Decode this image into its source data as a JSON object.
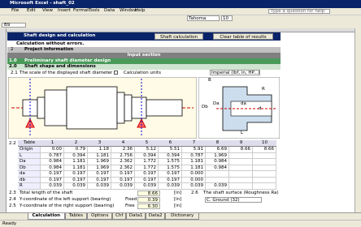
{
  "window": {
    "title": "Microsoft Excel - shaft_02"
  },
  "menu": [
    "File",
    "Edit",
    "View",
    "Insert",
    "Format",
    "Tools",
    "Data",
    "Window",
    "Help"
  ],
  "help_box": "Type a question for help",
  "toolbar": {
    "font": "Tahoma",
    "size": "10"
  },
  "name_box": "B9",
  "sheet": {
    "title": "Shaft design and calculation",
    "buttons": [
      "Shaft calculation",
      "Clear table of results"
    ],
    "status_message": "Calculation without errors.",
    "project": {
      "number": "2",
      "label": "Project information"
    },
    "input_section": "Input section",
    "section_1": {
      "number": "1.0",
      "label": "Preliminary shaft diameter design"
    },
    "section_2": {
      "number": "2.0",
      "label": "Shaft shape and dimensions"
    },
    "scale": {
      "number": "2.1",
      "label": "The scale of the displayed shaft diameter",
      "units_label": "Calculation units",
      "units_value": "Imperial (lbf, in, HP...)"
    },
    "figure_labels": [
      "B",
      "Db",
      "Da",
      "da",
      "d",
      "R",
      "L"
    ],
    "table": {
      "number": "2.2",
      "header": [
        "Table",
        "1",
        "2",
        "3",
        "4",
        "5",
        "6",
        "7",
        "8",
        "9",
        "10"
      ],
      "rows": [
        [
          "Origin",
          "0.00",
          "0.79",
          "1.18",
          "2.36",
          "5.12",
          "5.51",
          "5.91",
          "6.69",
          "8.66",
          "8.66"
        ],
        [
          "L",
          "0.787",
          "0.394",
          "1.181",
          "2.756",
          "0.394",
          "0.394",
          "0.787",
          "1.969"
        ],
        [
          "Da",
          "0.984",
          "1.181",
          "1.969",
          "2.362",
          "1.772",
          "1.575",
          "1.181",
          "0.984"
        ],
        [
          "Db",
          "0.984",
          "1.181",
          "1.969",
          "2.362",
          "1.772",
          "1.575",
          "1.181",
          "0.984"
        ],
        [
          "da",
          "0.197",
          "0.197",
          "0.197",
          "0.197",
          "0.197",
          "0.197",
          "0.000"
        ],
        [
          "db",
          "0.197",
          "0.197",
          "0.197",
          "0.197",
          "0.197",
          "0.197",
          "0.000"
        ],
        [
          "R",
          "0.039",
          "0.039",
          "0.039",
          "0.039",
          "0.039",
          "0.039",
          "0.039",
          "0.039"
        ]
      ]
    },
    "params": [
      {
        "number": "2.3",
        "label": "Total length of the shaft",
        "value": "8.66",
        "unit": "[in]"
      },
      {
        "number": "2.4",
        "label": "Y-coordinate of the left support (bearing)",
        "mode": "Fixed",
        "value": "0.39",
        "unit": "[in]"
      },
      {
        "number": "2.5",
        "label": "Y-coordinate of the right support (bearing)",
        "mode": "Free",
        "value": "6.30",
        "unit": "[in]"
      }
    ],
    "surface": {
      "number": "2.6",
      "label": "The shaft surface (Roughness Ra)",
      "value": "C. Ground (32)"
    }
  },
  "tabs": [
    "Calculation",
    "Tables",
    "Options",
    "Chf",
    "Data1",
    "Data2",
    "Dictionary"
  ],
  "status": "Ready"
}
